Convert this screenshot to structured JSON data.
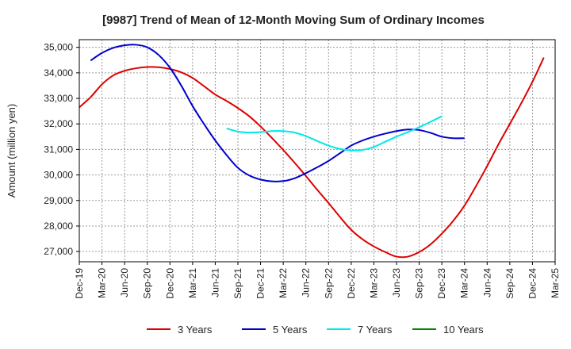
{
  "chart_data": {
    "type": "line",
    "title": "[9987]  Trend of Mean of 12-Month Moving Sum of Ordinary Incomes",
    "xlabel": "",
    "ylabel": "Amount (million yen)",
    "ylim": [
      26600,
      35300
    ],
    "yticks": [
      27000,
      28000,
      29000,
      30000,
      31000,
      32000,
      33000,
      34000,
      35000
    ],
    "ytick_labels": [
      "27,000",
      "28,000",
      "29,000",
      "30,000",
      "31,000",
      "32,000",
      "33,000",
      "34,000",
      "35,000"
    ],
    "xticks": [
      "Dec-19",
      "Mar-20",
      "Jun-20",
      "Sep-20",
      "Dec-20",
      "Mar-21",
      "Jun-21",
      "Sep-21",
      "Dec-21",
      "Mar-22",
      "Jun-22",
      "Sep-22",
      "Dec-22",
      "Mar-23",
      "Jun-23",
      "Sep-23",
      "Dec-23",
      "Mar-24",
      "Jun-24",
      "Sep-24",
      "Dec-24",
      "Mar-25"
    ],
    "grid": true,
    "legend_position": "bottom",
    "series": [
      {
        "name": "3 Years",
        "color": "#dd0000",
        "start_index": 0,
        "values": [
          32650,
          33050,
          33550,
          33900,
          34080,
          34180,
          34230,
          34220,
          34150,
          34020,
          33800,
          33480,
          33150,
          32900,
          32620,
          32300,
          31900,
          31450,
          30980,
          30480,
          29960,
          29420,
          28900,
          28360,
          27850,
          27480,
          27200,
          26980,
          26800,
          26800,
          26980,
          27280,
          27700,
          28200,
          28800,
          29550,
          30350,
          31200,
          32000,
          32800,
          33650,
          34600
        ]
      },
      {
        "name": "5 Years",
        "color": "#0000cc",
        "start_index": 1,
        "values": [
          34480,
          34780,
          34980,
          35080,
          35100,
          35000,
          34700,
          34200,
          33500,
          32700,
          32000,
          31350,
          30780,
          30280,
          29980,
          29820,
          29750,
          29760,
          29870,
          30070,
          30300,
          30550,
          30850,
          31150,
          31350,
          31500,
          31620,
          31720,
          31780,
          31760,
          31650,
          31500,
          31440,
          31440
        ]
      },
      {
        "name": "7 Years",
        "color": "#00e8e8",
        "start_index": 13,
        "values": [
          31820,
          31700,
          31660,
          31680,
          31720,
          31720,
          31660,
          31520,
          31330,
          31150,
          31020,
          30960,
          30980,
          31100,
          31300,
          31500,
          31680,
          31870,
          32080,
          32300
        ]
      },
      {
        "name": "10 Years",
        "color": "#008800",
        "start_index": 0,
        "values": []
      }
    ]
  }
}
